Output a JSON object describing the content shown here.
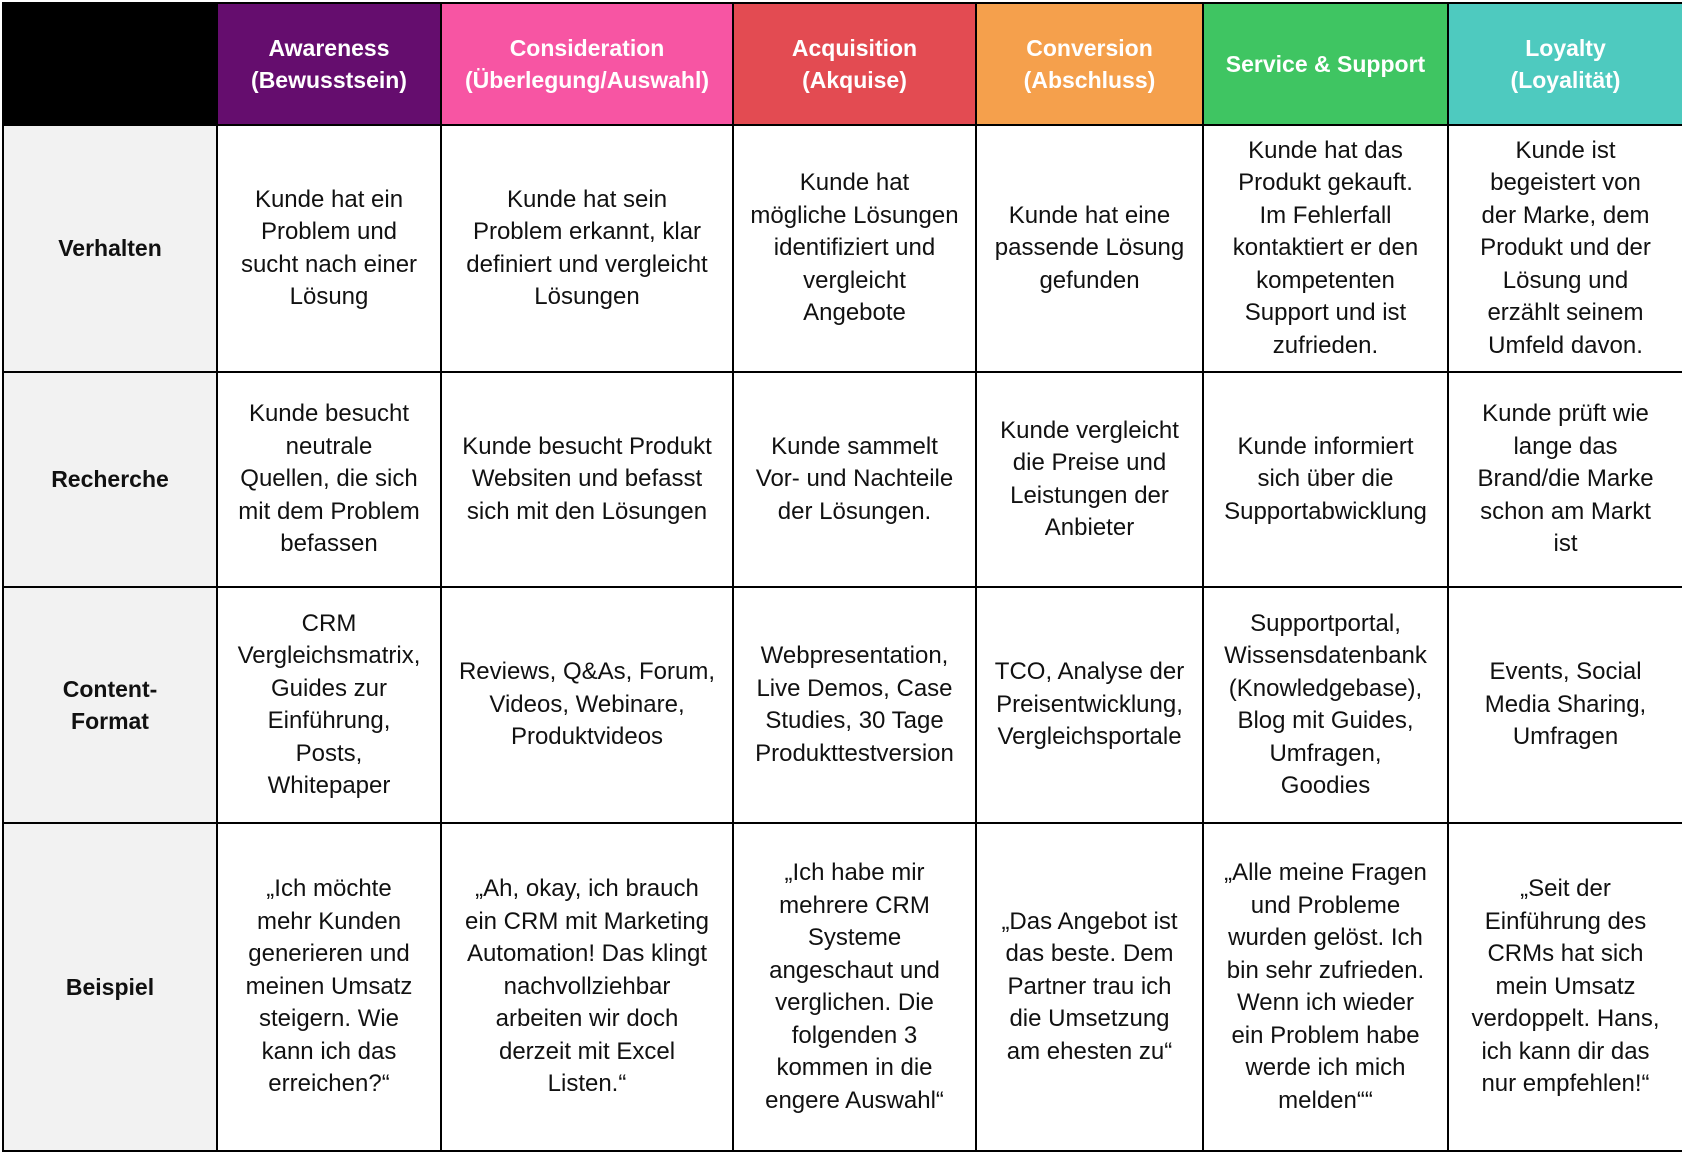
{
  "colors": {
    "awareness": "#650d6e",
    "consideration": "#f755a3",
    "acquisition": "#e34b52",
    "conversion": "#f5a04c",
    "service": "#3fc562",
    "loyalty": "#4ecabf",
    "corner": "#000000",
    "row_label_bg": "#f2f2f2"
  },
  "columns": [
    {
      "title": "Awareness",
      "subtitle": "(Bewusstsein)"
    },
    {
      "title": "Consideration",
      "subtitle": "(Überlegung/Auswahl)"
    },
    {
      "title": "Acquisition",
      "subtitle": "(Akquise)"
    },
    {
      "title": "Conversion",
      "subtitle": "(Abschluss)"
    },
    {
      "title": "Service & Support",
      "subtitle": ""
    },
    {
      "title": "Loyalty",
      "subtitle": "(Loyalität)"
    }
  ],
  "rows": [
    {
      "label": [
        "Verhalten"
      ],
      "cells": [
        [
          "Kunde hat ein",
          "Problem und",
          "sucht nach einer",
          "Lösung"
        ],
        [
          "Kunde hat sein",
          "Problem erkannt, klar",
          "definiert und vergleicht",
          "Lösungen"
        ],
        [
          "Kunde hat",
          "mögliche Lösungen",
          "identifiziert und",
          "vergleicht",
          "Angebote"
        ],
        [
          "Kunde hat eine",
          "passende Lösung",
          "gefunden"
        ],
        [
          "Kunde hat das",
          "Produkt gekauft.",
          "Im Fehlerfall",
          "kontaktiert er den",
          "kompetenten",
          "Support und ist",
          "zufrieden."
        ],
        [
          "Kunde ist",
          "begeistert von",
          "der Marke, dem",
          "Produkt und der",
          "Lösung und",
          "erzählt seinem",
          "Umfeld davon."
        ]
      ]
    },
    {
      "label": [
        "Recherche"
      ],
      "cells": [
        [
          "Kunde besucht",
          "neutrale",
          "Quellen, die sich",
          "mit dem Problem",
          "befassen"
        ],
        [
          "Kunde besucht Produkt",
          "Websiten und befasst",
          "sich mit den Lösungen"
        ],
        [
          "Kunde sammelt",
          "Vor- und Nachteile",
          "der Lösungen."
        ],
        [
          "Kunde vergleicht",
          "die Preise und",
          "Leistungen der",
          "Anbieter"
        ],
        [
          "Kunde informiert",
          "sich über die",
          "Supportabwicklung"
        ],
        [
          "Kunde prüft wie",
          "lange das",
          "Brand/die Marke",
          "schon am Markt",
          "ist"
        ]
      ]
    },
    {
      "label": [
        "Content-",
        "Format"
      ],
      "cells": [
        [
          "CRM",
          "Vergleichsmatrix,",
          "Guides zur",
          "Einführung,",
          "Posts,",
          "Whitepaper"
        ],
        [
          "Reviews, Q&As, Forum,",
          "Videos, Webinare,",
          "Produktvideos"
        ],
        [
          "Webpresentation,",
          "Live Demos, Case",
          "Studies, 30 Tage",
          "Produkttestversion"
        ],
        [
          "TCO, Analyse der",
          "Preisentwicklung,",
          "Vergleichsportale"
        ],
        [
          "Supportportal,",
          "Wissensdatenbank",
          "(Knowledgebase),",
          "Blog mit Guides,",
          "Umfragen,",
          "Goodies"
        ],
        [
          "Events, Social",
          "Media Sharing,",
          "Umfragen"
        ]
      ]
    },
    {
      "label": [
        "Beispiel"
      ],
      "cells": [
        [
          "„Ich möchte",
          "mehr Kunden",
          "generieren und",
          "meinen Umsatz",
          "steigern. Wie",
          "kann ich das",
          "erreichen?“"
        ],
        [
          "„Ah, okay, ich brauch",
          "ein CRM mit Marketing",
          "Automation! Das klingt",
          "nachvollziehbar",
          "arbeiten wir doch",
          "derzeit mit Excel",
          "Listen.“"
        ],
        [
          "„Ich habe mir",
          "mehrere CRM",
          "Systeme",
          "angeschaut und",
          "verglichen. Die",
          "folgenden 3",
          "kommen in die",
          "engere Auswahl“"
        ],
        [
          "„Das Angebot ist",
          "das beste. Dem",
          "Partner trau ich",
          "die Umsetzung",
          "am ehesten zu“"
        ],
        [
          "„Alle meine Fragen",
          "und Probleme",
          "wurden gelöst. Ich",
          "bin sehr zufrieden.",
          "Wenn ich wieder",
          "ein Problem habe",
          "werde ich mich",
          "melden““"
        ],
        [
          "„Seit der",
          "Einführung des",
          "CRMs hat sich",
          "mein Umsatz",
          "verdoppelt. Hans,",
          "ich kann dir das",
          "nur empfehlen!“"
        ]
      ]
    }
  ]
}
